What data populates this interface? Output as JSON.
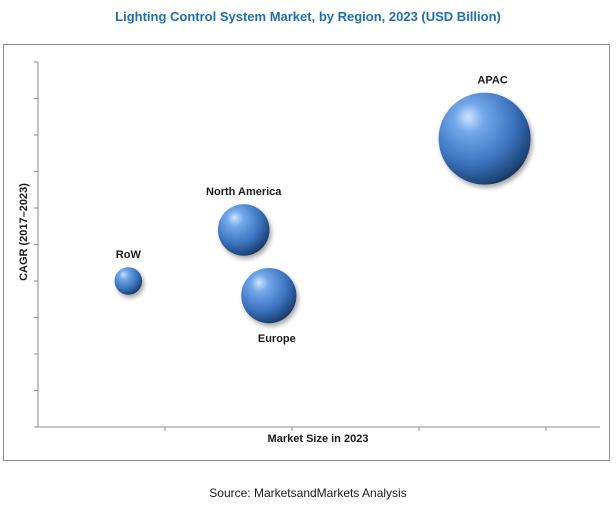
{
  "chart_data": {
    "type": "bubble",
    "title": "Lighting Control System Market, by Region, 2023 (USD Billion)",
    "xlabel": "Market Size in 2023",
    "ylabel": "CAGR (2017–2023)",
    "grid": false,
    "legend": "none",
    "bubble_color": "#3f7cc6",
    "series": [
      {
        "label": "RoW",
        "x": 1.8,
        "y": 4.0,
        "size": 0.3
      },
      {
        "label": "North America",
        "x": 4.1,
        "y": 5.4,
        "size": 0.56
      },
      {
        "label": "Europe",
        "x": 4.6,
        "y": 3.6,
        "size": 0.6
      },
      {
        "label": "APAC",
        "x": 8.9,
        "y": 7.9,
        "size": 1.0
      }
    ],
    "xlim": [
      0,
      11.2
    ],
    "ylim": [
      0,
      10
    ]
  },
  "source": "Source: MarketsandMarkets Analysis"
}
